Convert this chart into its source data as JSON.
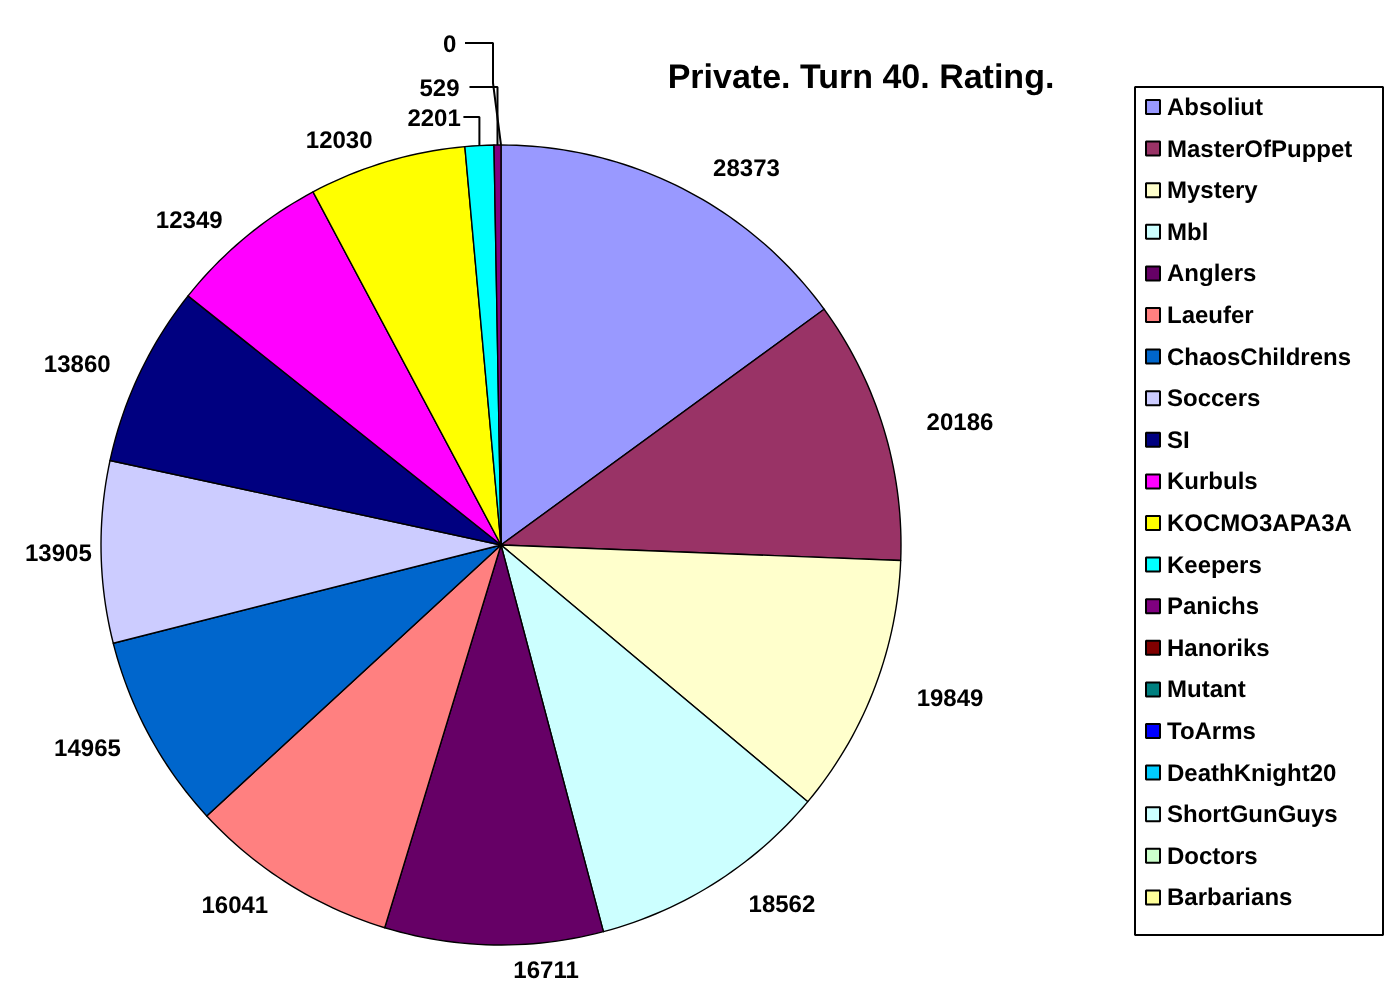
{
  "chart_data": {
    "type": "pie",
    "title": "Private. Turn 40. Rating.",
    "categories": [
      "Absoliut",
      "MasterOfPuppet",
      "Mystery",
      "Mbl",
      "Anglers",
      "Laeufer",
      "ChaosChildrens",
      "Soccers",
      "SI",
      "Kurbuls",
      "KOCMO3APA3A",
      "Keepers",
      "Panichs",
      "Hanoriks",
      "Mutant",
      "ToArms",
      "DeathKnight20",
      "ShortGunGuys",
      "Doctors",
      "Barbarians"
    ],
    "values": [
      28373,
      20186,
      19849,
      18562,
      16711,
      16041,
      14965,
      13905,
      13860,
      12349,
      12030,
      2201,
      529,
      0,
      0,
      0,
      0,
      0,
      0,
      0
    ],
    "value_labels": [
      "28373",
      "20186",
      "19849",
      "18562",
      "16711",
      "16041",
      "14965",
      "13905",
      "13860",
      "12349",
      "12030",
      "2201",
      "529",
      null,
      null,
      null,
      null,
      null,
      null,
      "0"
    ],
    "colors": [
      "#9999ff",
      "#993366",
      "#ffffcc",
      "#ccffff",
      "#660066",
      "#ff8080",
      "#0066cc",
      "#ccccff",
      "#000080",
      "#ff00ff",
      "#ffff00",
      "#00ffff",
      "#800080",
      "#800000",
      "#008080",
      "#0000ff",
      "#00ccff",
      "#ccffff",
      "#ccffcc",
      "#ffff99"
    ],
    "legend": "right"
  }
}
